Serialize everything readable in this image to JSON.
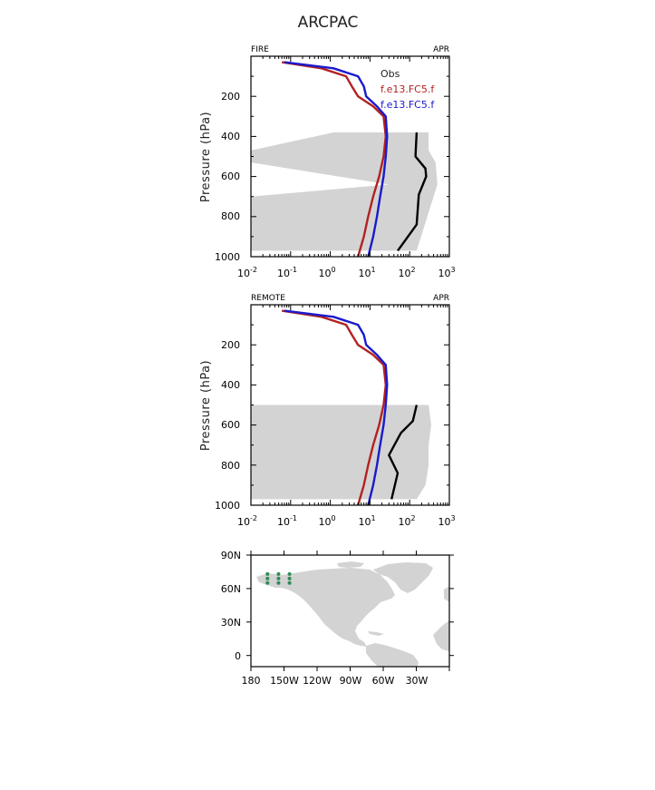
{
  "figure_title": "ARCPAC",
  "colors": {
    "obs": "#000000",
    "model1": "#b22222",
    "model2": "#1a1acd",
    "shade": "#d3d3d3",
    "land": "#d3d3d3",
    "sites": "#2e8b57"
  },
  "chart_data": [
    {
      "type": "line",
      "panel": "FIRE",
      "corner_left": "FIRE",
      "corner_right": "APR",
      "xscale": "log",
      "xlim": [
        0.01,
        1000
      ],
      "xticks": [
        {
          "base": "10",
          "exp": "-2"
        },
        {
          "base": "10",
          "exp": "-1"
        },
        {
          "base": "10",
          "exp": "0"
        },
        {
          "base": "10",
          "exp": "1"
        },
        {
          "base": "10",
          "exp": "2"
        },
        {
          "base": "10",
          "exp": "3"
        }
      ],
      "ylabel": "Pressure  (hPa)",
      "ylim": [
        1000,
        0
      ],
      "yticks": [
        "200",
        "400",
        "600",
        "800",
        "1000"
      ],
      "legend": [
        "Obs",
        "f.e13.FC5.f",
        "f.e13.FC5.f"
      ],
      "obs_range": {
        "pressure": [
          380,
          470,
          530,
          640,
          700,
          970
        ],
        "low": [
          1.2,
          0.01,
          0.01,
          30,
          0.01,
          0.01
        ],
        "high": [
          300,
          300,
          450,
          500,
          400,
          150
        ]
      },
      "series": [
        {
          "name": "Obs",
          "pressure": [
            380,
            500,
            560,
            600,
            690,
            840,
            970
          ],
          "values": [
            150,
            140,
            250,
            260,
            170,
            150,
            50
          ]
        },
        {
          "name": "f.e13.FC5.f",
          "pressure": [
            30,
            60,
            100,
            150,
            200,
            250,
            300,
            400,
            500,
            600,
            700,
            800,
            900,
            1000
          ],
          "values": [
            0.06,
            0.6,
            2.5,
            3.5,
            5,
            12,
            22,
            25,
            22,
            17,
            12,
            9,
            7,
            5
          ]
        },
        {
          "name": "f.e13.FC5.f",
          "pressure": [
            30,
            60,
            100,
            150,
            200,
            250,
            300,
            400,
            500,
            600,
            700,
            800,
            900,
            1000
          ],
          "values": [
            0.07,
            1.2,
            5,
            7,
            8,
            15,
            25,
            27,
            25,
            22,
            18,
            15,
            12,
            9
          ]
        }
      ]
    },
    {
      "type": "line",
      "panel": "REMOTE",
      "corner_left": "REMOTE",
      "corner_right": "APR",
      "xscale": "log",
      "xlim": [
        0.01,
        1000
      ],
      "xticks": [
        {
          "base": "10",
          "exp": "-2"
        },
        {
          "base": "10",
          "exp": "-1"
        },
        {
          "base": "10",
          "exp": "0"
        },
        {
          "base": "10",
          "exp": "1"
        },
        {
          "base": "10",
          "exp": "2"
        },
        {
          "base": "10",
          "exp": "3"
        }
      ],
      "ylabel": "Pressure  (hPa)",
      "ylim": [
        1000,
        0
      ],
      "yticks": [
        "200",
        "400",
        "600",
        "800",
        "1000"
      ],
      "obs_range": {
        "pressure": [
          500,
          600,
          700,
          800,
          900,
          970
        ],
        "low": [
          0.01,
          0.01,
          0.01,
          0.01,
          0.01,
          0.01
        ],
        "high": [
          300,
          350,
          300,
          300,
          250,
          150
        ]
      },
      "series": [
        {
          "name": "Obs",
          "pressure": [
            500,
            580,
            640,
            750,
            840,
            970
          ],
          "values": [
            150,
            120,
            60,
            30,
            50,
            35
          ]
        },
        {
          "name": "f.e13.FC5.f",
          "pressure": [
            30,
            60,
            100,
            150,
            200,
            250,
            300,
            400,
            500,
            600,
            700,
            800,
            900,
            1000
          ],
          "values": [
            0.06,
            0.6,
            2.5,
            3.5,
            5,
            12,
            22,
            25,
            22,
            17,
            12,
            9,
            7,
            5
          ]
        },
        {
          "name": "f.e13.FC5.f",
          "pressure": [
            30,
            60,
            100,
            150,
            200,
            250,
            300,
            400,
            500,
            600,
            700,
            800,
            900,
            1000
          ],
          "values": [
            0.07,
            1.2,
            5,
            7,
            8,
            15,
            25,
            27,
            25,
            22,
            18,
            15,
            12,
            9
          ]
        }
      ]
    },
    {
      "type": "scatter",
      "panel": "map",
      "xlim": [
        -180,
        0
      ],
      "ylim": [
        -10,
        90
      ],
      "xticks": [
        {
          "value": -180,
          "label": "180"
        },
        {
          "value": -150,
          "label": "150W"
        },
        {
          "value": -120,
          "label": "120W"
        },
        {
          "value": -90,
          "label": "90W"
        },
        {
          "value": -60,
          "label": "60W"
        },
        {
          "value": -30,
          "label": "30W"
        }
      ],
      "yticks": [
        {
          "value": 90,
          "label": "90N"
        },
        {
          "value": 60,
          "label": "60N"
        },
        {
          "value": 30,
          "label": "30N"
        },
        {
          "value": 0,
          "label": "0"
        }
      ],
      "site_lon": [
        -165,
        -155,
        -145
      ],
      "site_lat": [
        73,
        69,
        65
      ]
    }
  ]
}
